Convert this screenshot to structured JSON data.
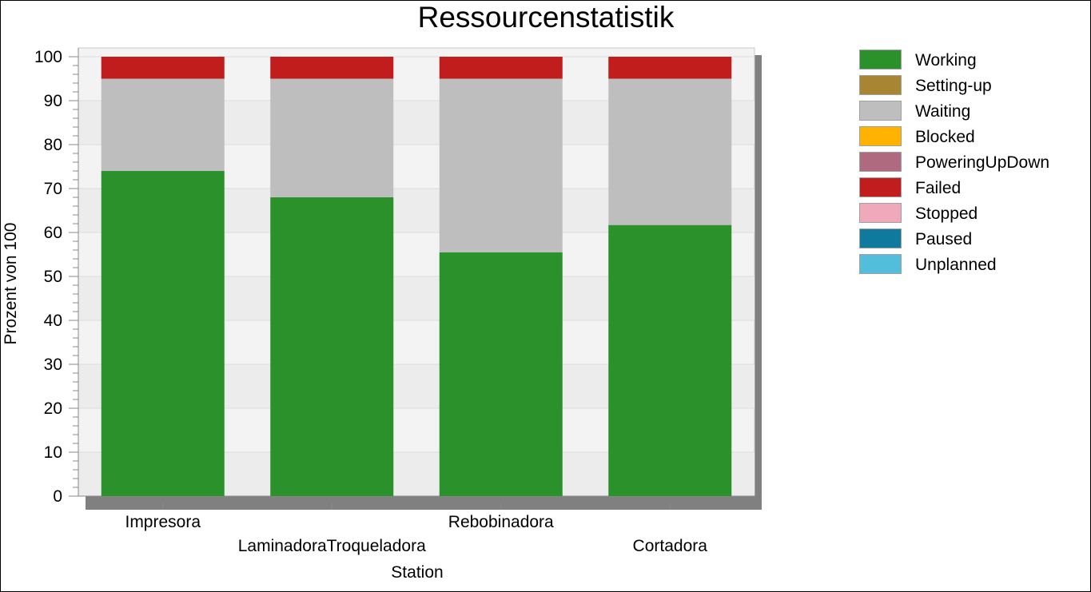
{
  "chart_data": {
    "type": "bar",
    "stacked": true,
    "title": "Ressourcenstatistik",
    "xlabel": "Station",
    "ylabel": "Prozent von 100",
    "ylim": [
      0,
      100
    ],
    "yticks": [
      0,
      10,
      20,
      30,
      40,
      50,
      60,
      70,
      80,
      90,
      100
    ],
    "categories": [
      "Impresora",
      "LaminadoraTroqueladora",
      "Rebobinadora",
      "Cortadora"
    ],
    "series": [
      {
        "name": "Working",
        "color": "#2b922b",
        "values": [
          74,
          68,
          55.5,
          61.7
        ]
      },
      {
        "name": "Setting-up",
        "color": "#a88533",
        "values": [
          0,
          0,
          0,
          0
        ]
      },
      {
        "name": "Waiting",
        "color": "#bebebe",
        "values": [
          21,
          27,
          39.5,
          33.3
        ]
      },
      {
        "name": "Blocked",
        "color": "#ffb300",
        "values": [
          0,
          0,
          0,
          0
        ]
      },
      {
        "name": "PoweringUpDown",
        "color": "#b06a80",
        "values": [
          0,
          0,
          0,
          0
        ]
      },
      {
        "name": "Failed",
        "color": "#c21d1d",
        "values": [
          5,
          5,
          5,
          5
        ]
      },
      {
        "name": "Stopped",
        "color": "#f0a8bb",
        "values": [
          0,
          0,
          0,
          0
        ]
      },
      {
        "name": "Paused",
        "color": "#107a9e",
        "values": [
          0,
          0,
          0,
          0
        ]
      },
      {
        "name": "Unplanned",
        "color": "#53bedb",
        "values": [
          0,
          0,
          0,
          0
        ]
      }
    ],
    "grid": true,
    "legend_position": "right"
  }
}
